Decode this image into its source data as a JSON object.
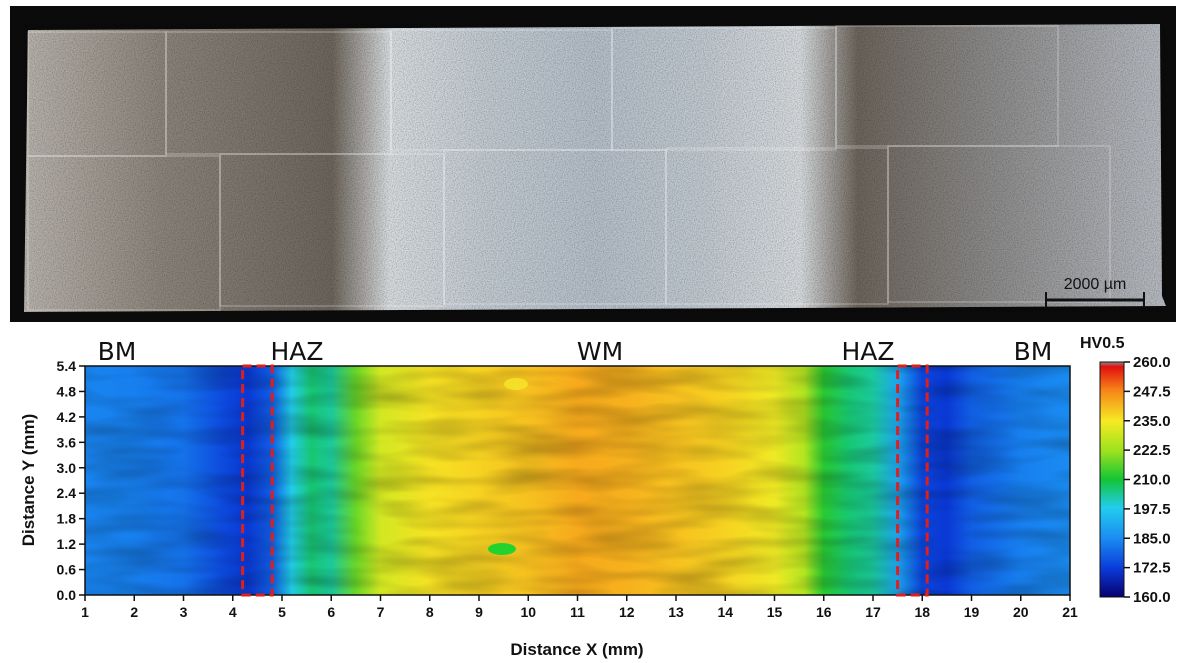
{
  "micrograph": {
    "scale_bar_label": "2000 µm"
  },
  "chart_data": {
    "type": "heatmap",
    "title": "",
    "xlabel": "Distance X (mm)",
    "ylabel": "Distance Y (mm)",
    "xlim": [
      1,
      21
    ],
    "ylim": [
      0,
      5.4
    ],
    "x_ticks": [
      "1",
      "2",
      "3",
      "4",
      "5",
      "6",
      "7",
      "8",
      "9",
      "10",
      "11",
      "12",
      "13",
      "14",
      "15",
      "16",
      "17",
      "18",
      "19",
      "20",
      "21"
    ],
    "y_ticks": [
      "0.0",
      "0.6",
      "1.2",
      "1.8",
      "2.4",
      "3.0",
      "3.6",
      "4.2",
      "4.8",
      "5.4"
    ],
    "zones": [
      {
        "label": "BM",
        "x": 2
      },
      {
        "label": "HAZ",
        "x": 5.5
      },
      {
        "label": "WM",
        "x": 11
      },
      {
        "label": "HAZ",
        "x": 16.4
      },
      {
        "label": "BM",
        "x": 20
      }
    ],
    "marked_regions": [
      {
        "x_range": [
          4.2,
          4.8
        ],
        "y_range": [
          0,
          5.4
        ]
      },
      {
        "x_range": [
          17.5,
          18.1
        ],
        "y_range": [
          0,
          5.4
        ]
      }
    ],
    "hardness_profile": {
      "x": [
        1,
        2,
        3,
        3.8,
        4.3,
        4.8,
        5.2,
        5.6,
        6.0,
        6.5,
        7,
        8,
        9,
        10,
        11,
        12,
        13,
        14,
        15,
        15.6,
        16.0,
        16.5,
        17.0,
        17.5,
        18.0,
        18.5,
        19,
        20,
        21
      ],
      "hv": [
        184,
        183,
        181,
        175,
        172,
        178,
        198,
        206,
        203,
        218,
        230,
        236,
        238,
        240,
        243,
        242,
        240,
        238,
        234,
        226,
        212,
        206,
        203,
        190,
        174,
        172,
        178,
        183,
        185
      ]
    },
    "colorbar": {
      "title": "HV0.5",
      "ticks": [
        "160.0",
        "172.5",
        "185.0",
        "197.5",
        "210.0",
        "222.5",
        "235.0",
        "247.5",
        "260.0"
      ],
      "range": [
        160,
        260
      ]
    }
  }
}
